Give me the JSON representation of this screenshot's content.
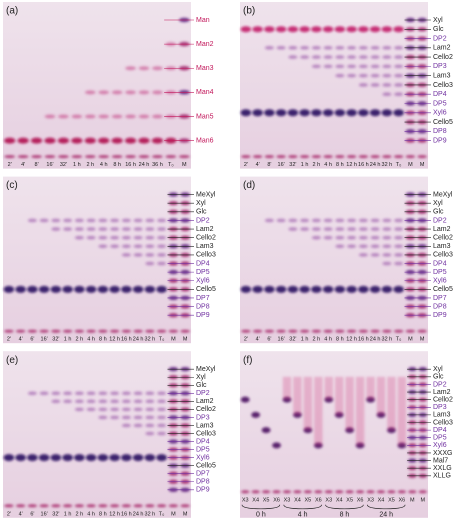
{
  "panels": [
    {
      "label": "(a)",
      "lanes": [
        "2'",
        "4'",
        "8'",
        "16'",
        "32'",
        "1 h",
        "2 h",
        "4 h",
        "8 h",
        "16 h",
        "24 h",
        "36 h",
        "T₀",
        "M"
      ],
      "markers": [
        {
          "label": "Man",
          "color": "#c2185b"
        },
        {
          "label": "Man2",
          "color": "#c2185b"
        },
        {
          "label": "Man3",
          "color": "#c2185b"
        },
        {
          "label": "Man4",
          "color": "#c2185b"
        },
        {
          "label": "Man5",
          "color": "#c2185b"
        },
        {
          "label": "Man6",
          "color": "#c2185b"
        }
      ]
    },
    {
      "label": "(b)",
      "lanes": [
        "2'",
        "4'",
        "8'",
        "16'",
        "32'",
        "1 h",
        "2 h",
        "4 h",
        "8 h",
        "12 h",
        "16 h",
        "24 h",
        "32 h",
        "T₀",
        "M",
        "M"
      ],
      "markers": [
        {
          "label": "Xyl",
          "color": "#222"
        },
        {
          "label": "Glc",
          "color": "#222"
        },
        {
          "label": "DP2",
          "color": "#7030a0"
        },
        {
          "label": "Lam2",
          "color": "#222"
        },
        {
          "label": "Cello2",
          "color": "#222"
        },
        {
          "label": "DP3",
          "color": "#7030a0"
        },
        {
          "label": "Lam3",
          "color": "#222"
        },
        {
          "label": "Cello3",
          "color": "#222"
        },
        {
          "label": "DP4",
          "color": "#7030a0"
        },
        {
          "label": "DP5",
          "color": "#7030a0"
        },
        {
          "label": "Xyl6",
          "color": "#7030a0"
        },
        {
          "label": "Cello5",
          "color": "#222"
        },
        {
          "label": "DP8",
          "color": "#7030a0"
        },
        {
          "label": "DP9",
          "color": "#7030a0"
        }
      ]
    },
    {
      "label": "(c)",
      "lanes": [
        "2'",
        "4'",
        "6'",
        "16'",
        "32'",
        "1 h",
        "2 h",
        "4 h",
        "8 h",
        "12 h",
        "16 h",
        "24 h",
        "32 h",
        "T₀",
        "M",
        "M"
      ],
      "markers": [
        {
          "label": "MeXyl",
          "color": "#222"
        },
        {
          "label": "Xyl",
          "color": "#222"
        },
        {
          "label": "Glc",
          "color": "#222"
        },
        {
          "label": "DP2",
          "color": "#7030a0"
        },
        {
          "label": "Lam2",
          "color": "#222"
        },
        {
          "label": "Cello2",
          "color": "#222"
        },
        {
          "label": "Lam3",
          "color": "#222"
        },
        {
          "label": "Cello3",
          "color": "#222"
        },
        {
          "label": "DP4",
          "color": "#7030a0"
        },
        {
          "label": "DP5",
          "color": "#7030a0"
        },
        {
          "label": "Xyl6",
          "color": "#7030a0"
        },
        {
          "label": "Cello5",
          "color": "#222"
        },
        {
          "label": "DP7",
          "color": "#7030a0"
        },
        {
          "label": "DP8",
          "color": "#7030a0"
        },
        {
          "label": "DP9",
          "color": "#7030a0"
        }
      ]
    },
    {
      "label": "(d)",
      "lanes": [
        "2'",
        "4'",
        "6'",
        "16'",
        "32'",
        "1 h",
        "2 h",
        "4 h",
        "8 h",
        "12 h",
        "16 h",
        "24 h",
        "32 h",
        "T₀",
        "M",
        "M"
      ],
      "markers": [
        {
          "label": "MeXyl",
          "color": "#222"
        },
        {
          "label": "Xyl",
          "color": "#222"
        },
        {
          "label": "Glc",
          "color": "#222"
        },
        {
          "label": "DP2",
          "color": "#7030a0"
        },
        {
          "label": "Lam2",
          "color": "#222"
        },
        {
          "label": "Cello2",
          "color": "#222"
        },
        {
          "label": "Lam3",
          "color": "#222"
        },
        {
          "label": "Cello3",
          "color": "#222"
        },
        {
          "label": "DP4",
          "color": "#7030a0"
        },
        {
          "label": "DP5",
          "color": "#7030a0"
        },
        {
          "label": "Xyl6",
          "color": "#7030a0"
        },
        {
          "label": "Cello5",
          "color": "#222"
        },
        {
          "label": "DP7",
          "color": "#7030a0"
        },
        {
          "label": "DP8",
          "color": "#7030a0"
        },
        {
          "label": "DP9",
          "color": "#7030a0"
        }
      ]
    },
    {
      "label": "(e)",
      "lanes": [
        "2'",
        "4'",
        "6'",
        "16'",
        "32'",
        "1 h",
        "2 h",
        "4 h",
        "8 h",
        "12 h",
        "16 h",
        "24 h",
        "32 h",
        "T₀",
        "M",
        "M"
      ],
      "markers": [
        {
          "label": "MeXyl",
          "color": "#222"
        },
        {
          "label": "Xyl",
          "color": "#222"
        },
        {
          "label": "Glc",
          "color": "#222"
        },
        {
          "label": "DP2",
          "color": "#7030a0"
        },
        {
          "label": "Lam2",
          "color": "#222"
        },
        {
          "label": "Cello2",
          "color": "#222"
        },
        {
          "label": "DP3",
          "color": "#7030a0"
        },
        {
          "label": "Lam3",
          "color": "#222"
        },
        {
          "label": "Cello3",
          "color": "#222"
        },
        {
          "label": "DP4",
          "color": "#7030a0"
        },
        {
          "label": "DP5",
          "color": "#7030a0"
        },
        {
          "label": "Xyl6",
          "color": "#7030a0"
        },
        {
          "label": "Cello5",
          "color": "#222"
        },
        {
          "label": "DP7",
          "color": "#7030a0"
        },
        {
          "label": "DP8",
          "color": "#7030a0"
        },
        {
          "label": "DP9",
          "color": "#7030a0"
        }
      ]
    },
    {
      "label": "(f)",
      "lanes": [
        "X3",
        "X4",
        "X5",
        "X6",
        "X3",
        "X4",
        "X5",
        "X6",
        "X3",
        "X4",
        "X5",
        "X6",
        "X3",
        "X4",
        "X5",
        "X6",
        "M",
        "M"
      ],
      "groups": [
        "0 h",
        "4 h",
        "8 h",
        "24 h"
      ],
      "markers": [
        {
          "label": "Xyl",
          "color": "#222"
        },
        {
          "label": "Glc",
          "color": "#222"
        },
        {
          "label": "DP2",
          "color": "#7030a0"
        },
        {
          "label": "Lam2",
          "color": "#222"
        },
        {
          "label": "Cello2",
          "color": "#222"
        },
        {
          "label": "DP3",
          "color": "#7030a0"
        },
        {
          "label": "Lam3",
          "color": "#222"
        },
        {
          "label": "Cello3",
          "color": "#222"
        },
        {
          "label": "DP4",
          "color": "#7030a0"
        },
        {
          "label": "DP5",
          "color": "#7030a0"
        },
        {
          "label": "Xyl6",
          "color": "#7030a0"
        },
        {
          "label": "XXXG",
          "color": "#222"
        },
        {
          "label": "Mal7",
          "color": "#222"
        },
        {
          "label": "XXLG",
          "color": "#222"
        },
        {
          "label": "XLLG",
          "color": "#222"
        }
      ]
    }
  ]
}
